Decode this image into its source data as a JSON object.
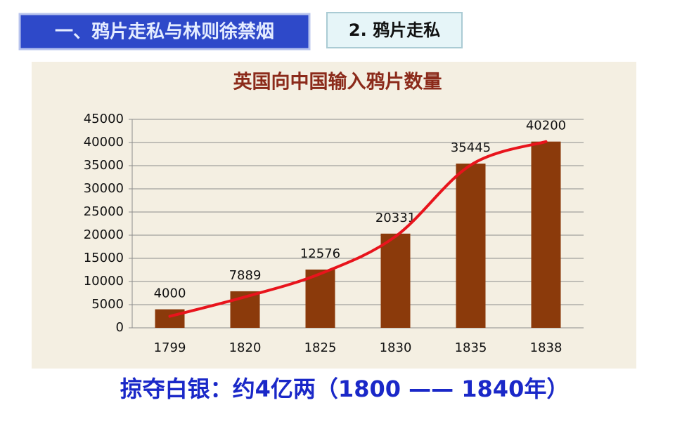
{
  "header": {
    "section": "一、鸦片走私与林则徐禁烟",
    "subsection": "2. 鸦片走私"
  },
  "chart_data": {
    "type": "bar",
    "title": "英国向中国输入鸦片数量",
    "categories": [
      "1799",
      "1820",
      "1825",
      "1830",
      "1835",
      "1838"
    ],
    "values": [
      4000,
      7889,
      12576,
      20331,
      35445,
      40200
    ],
    "color": "#8b3a0b",
    "trendline_color": "#e8141c",
    "ylim": [
      0,
      45000
    ],
    "yticks": [
      0,
      5000,
      10000,
      15000,
      20000,
      25000,
      30000,
      35000,
      40000,
      45000
    ],
    "grid": true
  },
  "caption": "掠夺白银：约4亿两（1800 —— 1840年）"
}
